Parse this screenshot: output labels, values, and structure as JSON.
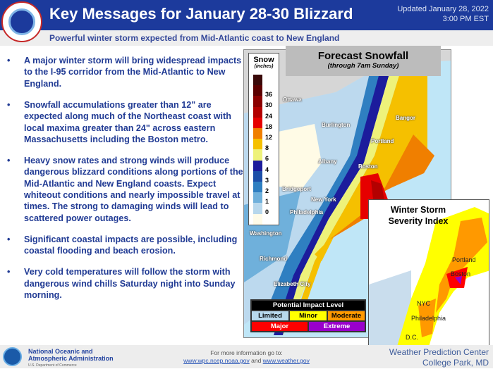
{
  "header": {
    "title": "Key Messages for January 28-30 Blizzard",
    "updated_line1": "Updated January 28, 2022",
    "updated_line2": "3:00 PM EST",
    "logo": "National Weather Service logo",
    "subtitle": "Powerful winter storm expected from Mid-Atlantic coast to New England"
  },
  "bullets": [
    "A major winter storm will bring widespread impacts to the I-95 corridor from the Mid-Atlantic to New England.",
    "Snowfall accumulations greater than 12\" are expected along much of the Northeast coast with local maxima greater than 24\" across eastern Massachusetts including the Boston metro.",
    "Heavy snow rates and strong winds will produce dangerous blizzard conditions along portions of the Mid-Atlantic and New England coasts. Expect whiteout conditions and nearly impossible travel at times. The strong to damaging winds will lead to scattered power outages.",
    "Significant coastal impacts are possible, including coastal flooding and beach erosion.",
    "Very cold temperatures will follow the storm with dangerous wind chills Saturday night into Sunday morning."
  ],
  "snow_map": {
    "title": "Forecast Snowfall",
    "subtitle": "(through 7am Sunday)",
    "legend": {
      "title": "Snow",
      "unit": "(inches)",
      "levels": [
        {
          "label": "",
          "color": "#3a0a0a"
        },
        {
          "label": "36",
          "color": "#5c0000"
        },
        {
          "label": "30",
          "color": "#8b0000"
        },
        {
          "label": "24",
          "color": "#b30000"
        },
        {
          "label": "18",
          "color": "#e60000"
        },
        {
          "label": "12",
          "color": "#f07f00"
        },
        {
          "label": "8",
          "color": "#f5c000"
        },
        {
          "label": "6",
          "color": "#eef27a"
        },
        {
          "label": "4",
          "color": "#1c1c9c"
        },
        {
          "label": "3",
          "color": "#1c4fa8"
        },
        {
          "label": "2",
          "color": "#2f7fc1"
        },
        {
          "label": "1",
          "color": "#6fb0db"
        },
        {
          "label": "0",
          "color": "#b7d7ec"
        },
        {
          "label": "",
          "color": "#fffbe8"
        }
      ]
    },
    "cities": [
      "Ottawa",
      "Burlington",
      "Bangor",
      "Portland",
      "Albany",
      "Boston",
      "New York",
      "Philadelphia",
      "Washington",
      "Richmond",
      "Elizabeth City",
      "Bridgeport"
    ]
  },
  "severity_map": {
    "title_line1": "Winter Storm",
    "title_line2": "Severity Index",
    "cities": [
      "Portland",
      "Boston",
      "NYC",
      "Philadelphia",
      "D.C."
    ],
    "impact_legend": {
      "title": "Potential Impact Level",
      "levels": [
        {
          "label": "Limited",
          "color": "#b8d8ec"
        },
        {
          "label": "Minor",
          "color": "#ffff00"
        },
        {
          "label": "Moderate",
          "color": "#ff9900"
        },
        {
          "label": "Major",
          "color": "#ff0000"
        },
        {
          "label": "Extreme",
          "color": "#9900cc"
        }
      ]
    }
  },
  "footer": {
    "org_line1": "National Oceanic and",
    "org_line2": "Atmospheric Administration",
    "org_line3": "U.S. Department of Commerce",
    "more_info": "For more information go to:",
    "link1": "www.wpc.ncep.noaa.gov",
    "and": "and",
    "link2": "www.weather.gov",
    "center_line1": "Weather Prediction Center",
    "center_line2": "College Park, MD"
  }
}
